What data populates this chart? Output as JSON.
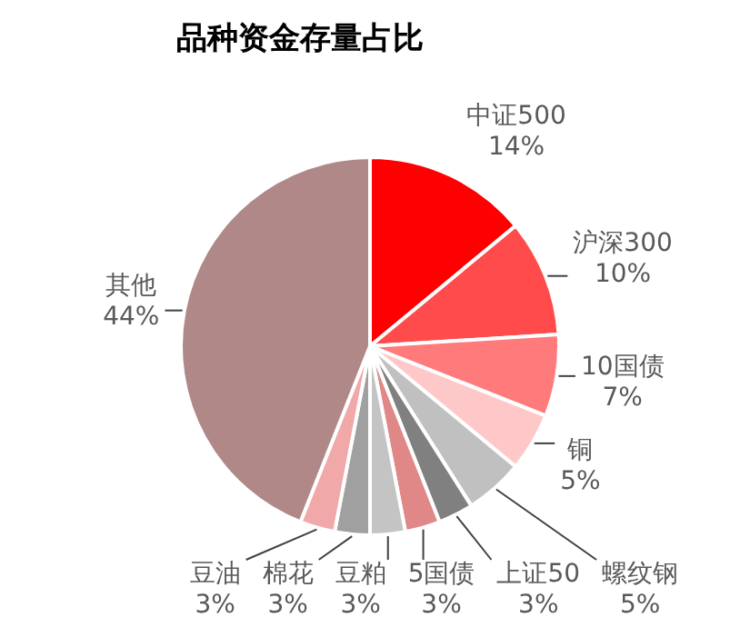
{
  "chart_data": {
    "type": "pie",
    "title": "品种资金存量占比",
    "categories": [
      "中证500",
      "沪深300",
      "10国债",
      "铜",
      "螺纹钢",
      "上证50",
      "5国债",
      "豆粕",
      "棉花",
      "豆油",
      "其他"
    ],
    "values": [
      14,
      10,
      7,
      5,
      5,
      3,
      3,
      3,
      3,
      3,
      44
    ],
    "colors": [
      "#ff0000",
      "#ff4b4b",
      "#ff7b7b",
      "#ffc8c8",
      "#c0c0c0",
      "#808080",
      "#e08888",
      "#c4c4c4",
      "#a0a0a0",
      "#f0a8a8",
      "#b08888"
    ],
    "value_labels": [
      "14%",
      "10%",
      "7%",
      "5%",
      "5%",
      "3%",
      "3%",
      "3%",
      "3%",
      "3%",
      "44%"
    ],
    "legend": false
  }
}
